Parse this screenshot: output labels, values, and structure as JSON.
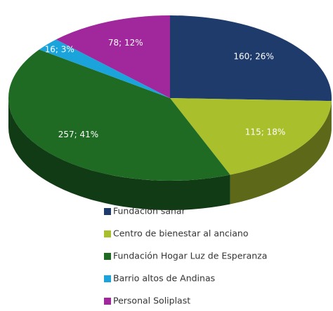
{
  "chart_data": {
    "type": "pie",
    "style": "3d",
    "categories": [
      "Fundación sanar",
      "Centro de bienestar al anciano",
      "Fundación Hogar Luz de Esperanza",
      "Barrio altos de Andinas",
      "Personal  Soliplast"
    ],
    "values": [
      160,
      115,
      257,
      16,
      78
    ],
    "value_labels": [
      "160; 26%",
      "115; 18%",
      "257; 41%",
      "16; 3%",
      "78; 12%"
    ],
    "colors": [
      "#1f3b6b",
      "#a9bf2b",
      "#1f6b24",
      "#1ba4dc",
      "#a1279c"
    ],
    "legend": "bottom"
  }
}
